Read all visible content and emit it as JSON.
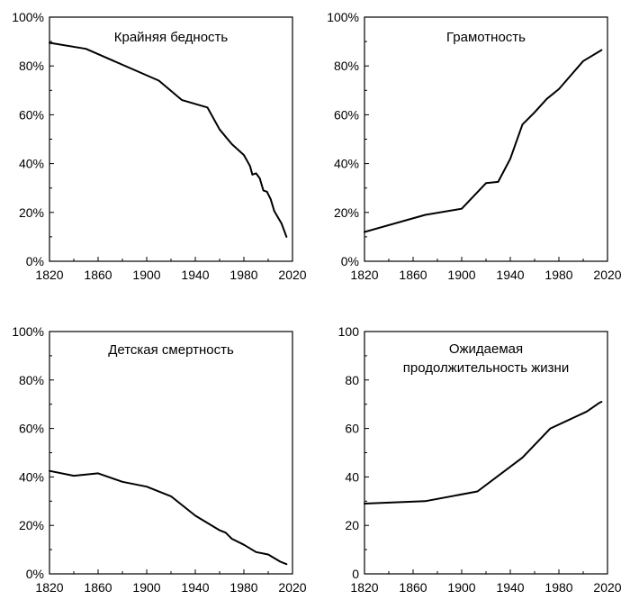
{
  "chart_data": [
    {
      "type": "line",
      "title": [
        "Крайняя бедность"
      ],
      "xlabel": "",
      "ylabel": "",
      "xlim": [
        1820,
        2020
      ],
      "ylim": [
        0,
        100
      ],
      "x_ticks": [
        "1820",
        "1860",
        "1900",
        "1940",
        "1980",
        "2020"
      ],
      "y_ticks": [
        "0%",
        "20%",
        "40%",
        "60%",
        "80%",
        "100%"
      ],
      "series": [
        {
          "x": [
            1820,
            1850,
            1910,
            1929,
            1950,
            1960,
            1970,
            1980,
            1985,
            1987,
            1990,
            1993,
            1996,
            1999,
            2002,
            2005,
            2008,
            2011,
            2015
          ],
          "y": [
            89.5,
            87,
            74,
            66,
            63,
            54,
            48,
            43.5,
            39,
            35.5,
            36,
            34,
            29,
            28.5,
            25.5,
            20.5,
            18,
            15.5,
            10
          ]
        }
      ]
    },
    {
      "type": "line",
      "title": [
        "Грамотность"
      ],
      "xlabel": "",
      "ylabel": "",
      "xlim": [
        1820,
        2020
      ],
      "ylim": [
        0,
        100
      ],
      "x_ticks": [
        "1820",
        "1860",
        "1900",
        "1940",
        "1980",
        "2020"
      ],
      "y_ticks": [
        "0%",
        "20%",
        "40%",
        "60%",
        "80%",
        "100%"
      ],
      "series": [
        {
          "x": [
            1820,
            1870,
            1900,
            1920,
            1930,
            1940,
            1950,
            1960,
            1970,
            1980,
            2000,
            2015
          ],
          "y": [
            12,
            19,
            21.5,
            32,
            32.5,
            42,
            56,
            61,
            66.5,
            70.5,
            82,
            86.5
          ]
        }
      ]
    },
    {
      "type": "line",
      "title": [
        "Детская смертность"
      ],
      "xlabel": "",
      "ylabel": "",
      "xlim": [
        1820,
        2020
      ],
      "ylim": [
        0,
        100
      ],
      "x_ticks": [
        "1820",
        "1860",
        "1900",
        "1940",
        "1980",
        "2020"
      ],
      "y_ticks": [
        "0%",
        "20%",
        "40%",
        "60%",
        "80%",
        "100%"
      ],
      "series": [
        {
          "x": [
            1820,
            1840,
            1860,
            1880,
            1900,
            1920,
            1940,
            1950,
            1960,
            1965,
            1970,
            1980,
            1990,
            2000,
            2010,
            2015
          ],
          "y": [
            42.5,
            40.5,
            41.5,
            38,
            36,
            32,
            24,
            21,
            18,
            17,
            14.5,
            12,
            9,
            8,
            5,
            4
          ]
        }
      ]
    },
    {
      "type": "line",
      "title": [
        "Ожидаемая",
        "продолжительность жизни"
      ],
      "xlabel": "",
      "ylabel": "",
      "xlim": [
        1820,
        2020
      ],
      "ylim": [
        0,
        100
      ],
      "x_ticks": [
        "1820",
        "1860",
        "1900",
        "1940",
        "1980",
        "2020"
      ],
      "y_ticks": [
        "0",
        "20",
        "40",
        "60",
        "80",
        "100"
      ],
      "series": [
        {
          "x": [
            1820,
            1870,
            1913,
            1950,
            1973,
            2003,
            2013,
            2015
          ],
          "y": [
            29,
            30,
            34,
            48,
            60,
            67,
            70.5,
            71
          ]
        }
      ]
    }
  ]
}
